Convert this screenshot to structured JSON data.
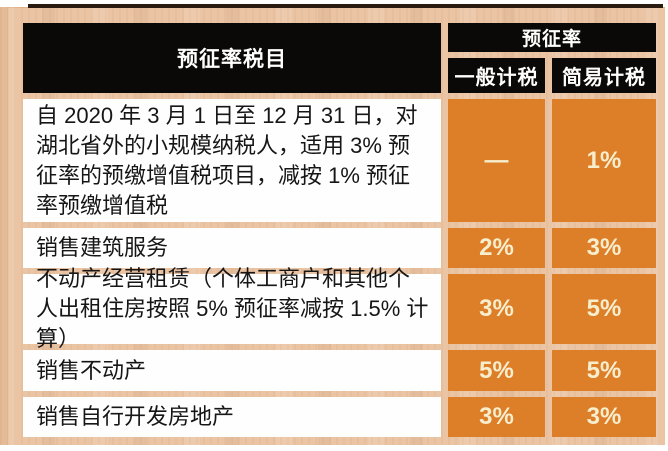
{
  "colors": {
    "page_background": "#ffffff",
    "wood_background": "#e2b28a",
    "top_strip": "#2a1b10",
    "header_bg": "#0b0907",
    "header_text": "#ffffff",
    "item_cell_bg": "#fefefe",
    "item_cell_text": "#161616",
    "rate_cell_bg": "#dd7e28",
    "rate_cell_text": "#f7eecd"
  },
  "chart_data": {
    "type": "table",
    "title": "",
    "columns": [
      "预征率税目",
      "一般计税",
      "简易计税"
    ],
    "header": {
      "item_col": "预征率税目",
      "rate_group": "预征率",
      "rate_col_general": "一般计税",
      "rate_col_simple": "简易计税"
    },
    "rows": [
      {
        "item": "自 2020 年 3 月 1 日至 12 月 31 日，对湖北省外的小规模纳税人，适用 3% 预征率的预缴增值税项目，减按 1% 预征率预缴增值税",
        "general": "—",
        "simple": "1%"
      },
      {
        "item": "销售建筑服务",
        "general": "2%",
        "simple": "3%"
      },
      {
        "item": "不动产经营租赁（个体工商户和其他个人出租住房按照 5% 预征率减按 1.5% 计算）",
        "general": "3%",
        "simple": "5%"
      },
      {
        "item": "销售不动产",
        "general": "5%",
        "simple": "5%"
      },
      {
        "item": "销售自行开发房地产",
        "general": "3%",
        "simple": "3%"
      }
    ]
  }
}
